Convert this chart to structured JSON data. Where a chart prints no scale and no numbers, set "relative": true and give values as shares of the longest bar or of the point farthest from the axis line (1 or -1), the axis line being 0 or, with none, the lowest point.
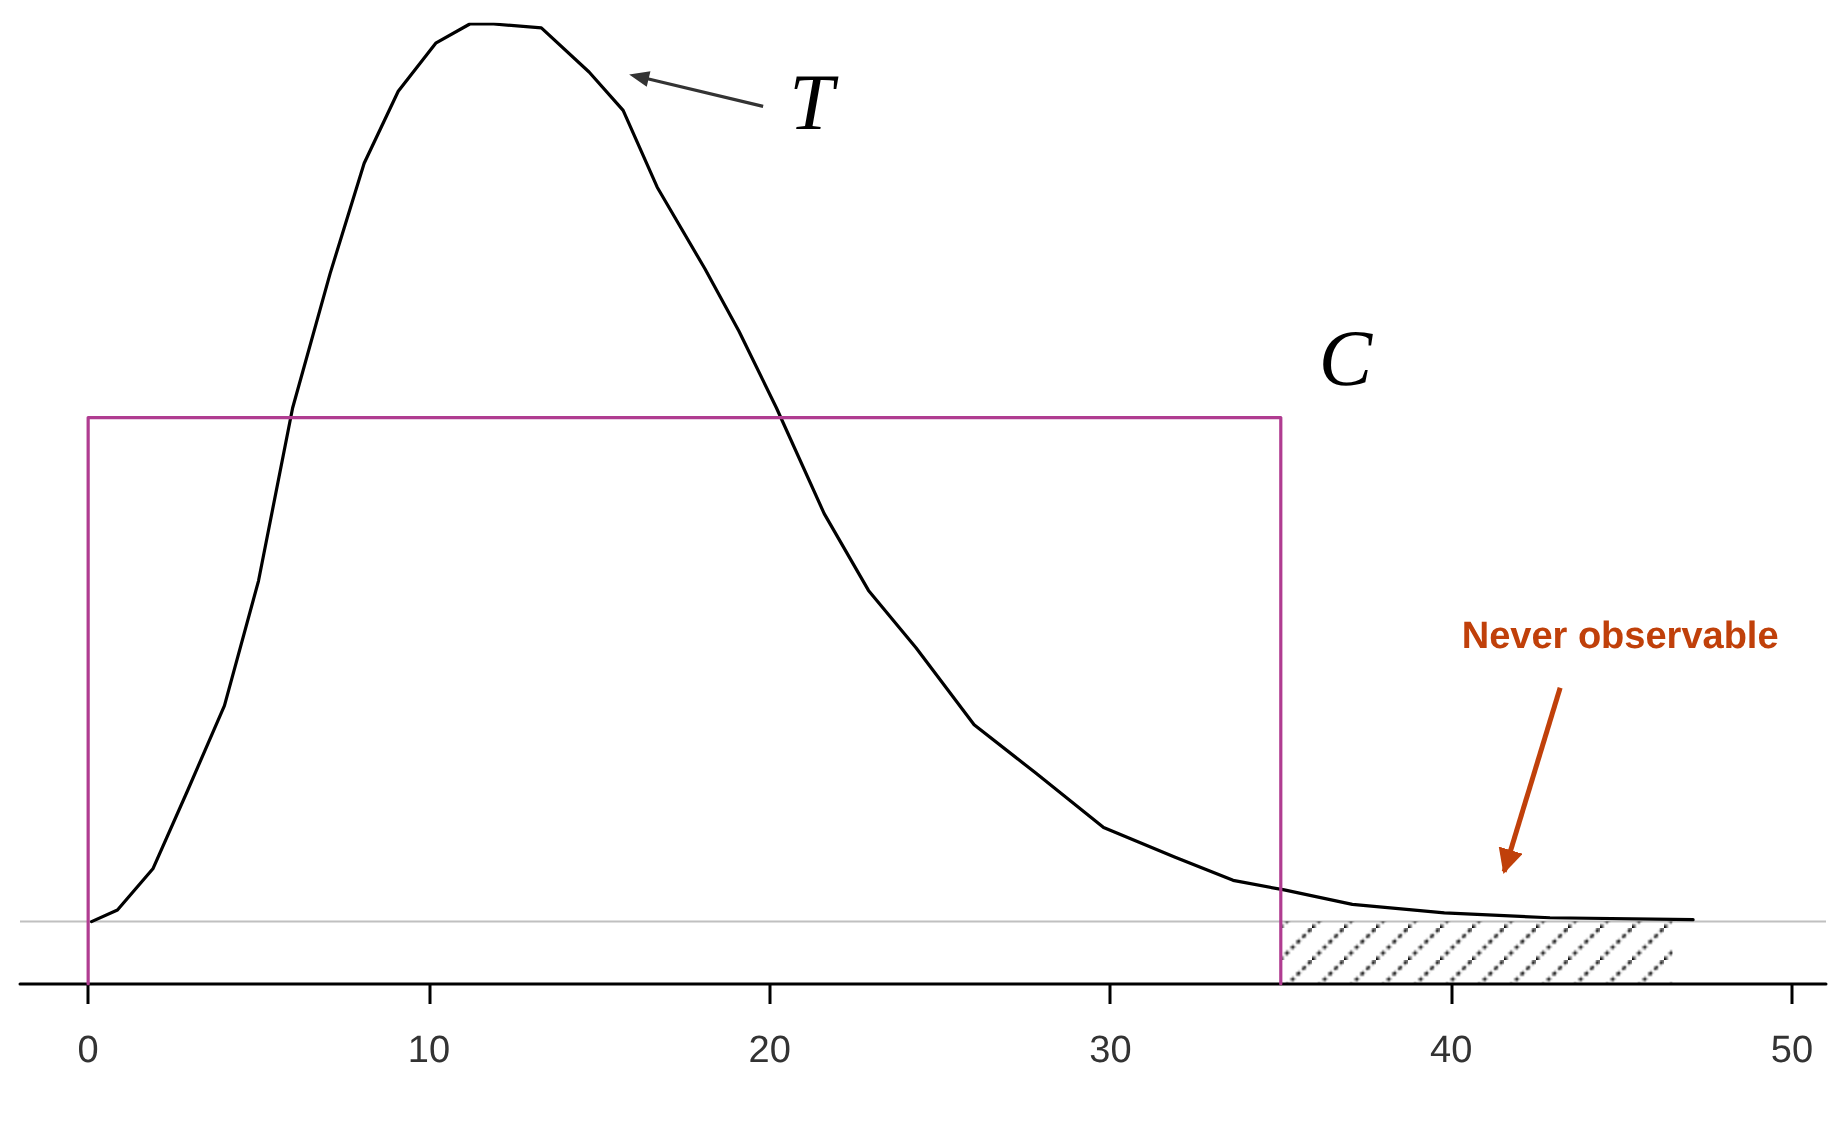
{
  "chart_data": {
    "type": "line",
    "relative": true,
    "xlim": [
      -2,
      51
    ],
    "xticks": [
      0,
      10,
      20,
      30,
      40,
      50
    ],
    "grid": false,
    "legend": false,
    "marker": "none",
    "line_style": "solid",
    "series": [
      {
        "name": "T",
        "color": "#000000",
        "x": [
          0.1,
          0.86,
          1.9,
          2.9,
          4.0,
          5.0,
          6.0,
          7.1,
          8.1,
          9.1,
          10.2,
          11.2,
          11.9,
          13.3,
          14.7,
          15.7,
          16.7,
          18.1,
          19.1,
          20.2,
          21.6,
          22.9,
          24.3,
          26.0,
          27.8,
          29.8,
          31.9,
          33.6,
          35.1,
          37.1,
          39.8,
          42.9,
          47.1
        ],
        "values": [
          0.065,
          0.077,
          0.12,
          0.2,
          0.29,
          0.42,
          0.6,
          0.74,
          0.855,
          0.93,
          0.98,
          1.0,
          1.0,
          0.996,
          0.95,
          0.91,
          0.83,
          0.745,
          0.68,
          0.6,
          0.49,
          0.41,
          0.35,
          0.27,
          0.22,
          0.163,
          0.132,
          0.108,
          0.098,
          0.083,
          0.074,
          0.069,
          0.067
        ]
      },
      {
        "name": "C",
        "color": "#b03c91",
        "x": [
          0,
          0,
          35,
          35
        ],
        "values": [
          0,
          0.59,
          0.59,
          0
        ]
      },
      {
        "type": "area",
        "color": "#000000",
        "x": [
          35,
          46.5
        ],
        "values": [
          0.065,
          0.065
        ]
      }
    ],
    "ref_lines": [
      {
        "axis": "y",
        "value": 0.065,
        "color": "#c0c0c0"
      }
    ],
    "annotations": [
      "Never observable"
    ]
  }
}
